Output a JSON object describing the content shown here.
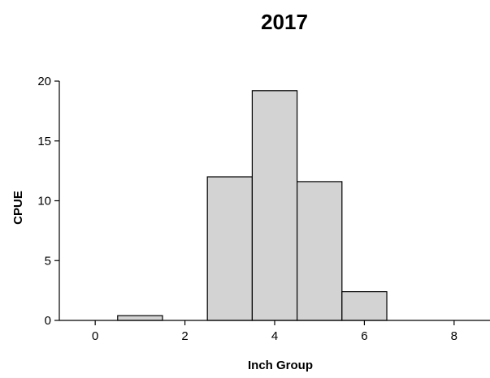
{
  "chart_data": {
    "type": "bar",
    "title": "2017",
    "xlabel": "Inch Group",
    "ylabel": "CPUE",
    "xlim": [
      -0.8,
      8.8
    ],
    "ylim": [
      0,
      20
    ],
    "xticks": [
      0,
      2,
      4,
      6,
      8
    ],
    "yticks": [
      0,
      5,
      10,
      15,
      20
    ],
    "bar_width": 1,
    "bar_color": "#d3d3d3",
    "bar_edge_color": "#000000",
    "grid": false,
    "legend": "none",
    "x": [
      1,
      3,
      4,
      5,
      6
    ],
    "values": [
      0.4,
      12.0,
      19.2,
      11.6,
      2.4
    ]
  }
}
